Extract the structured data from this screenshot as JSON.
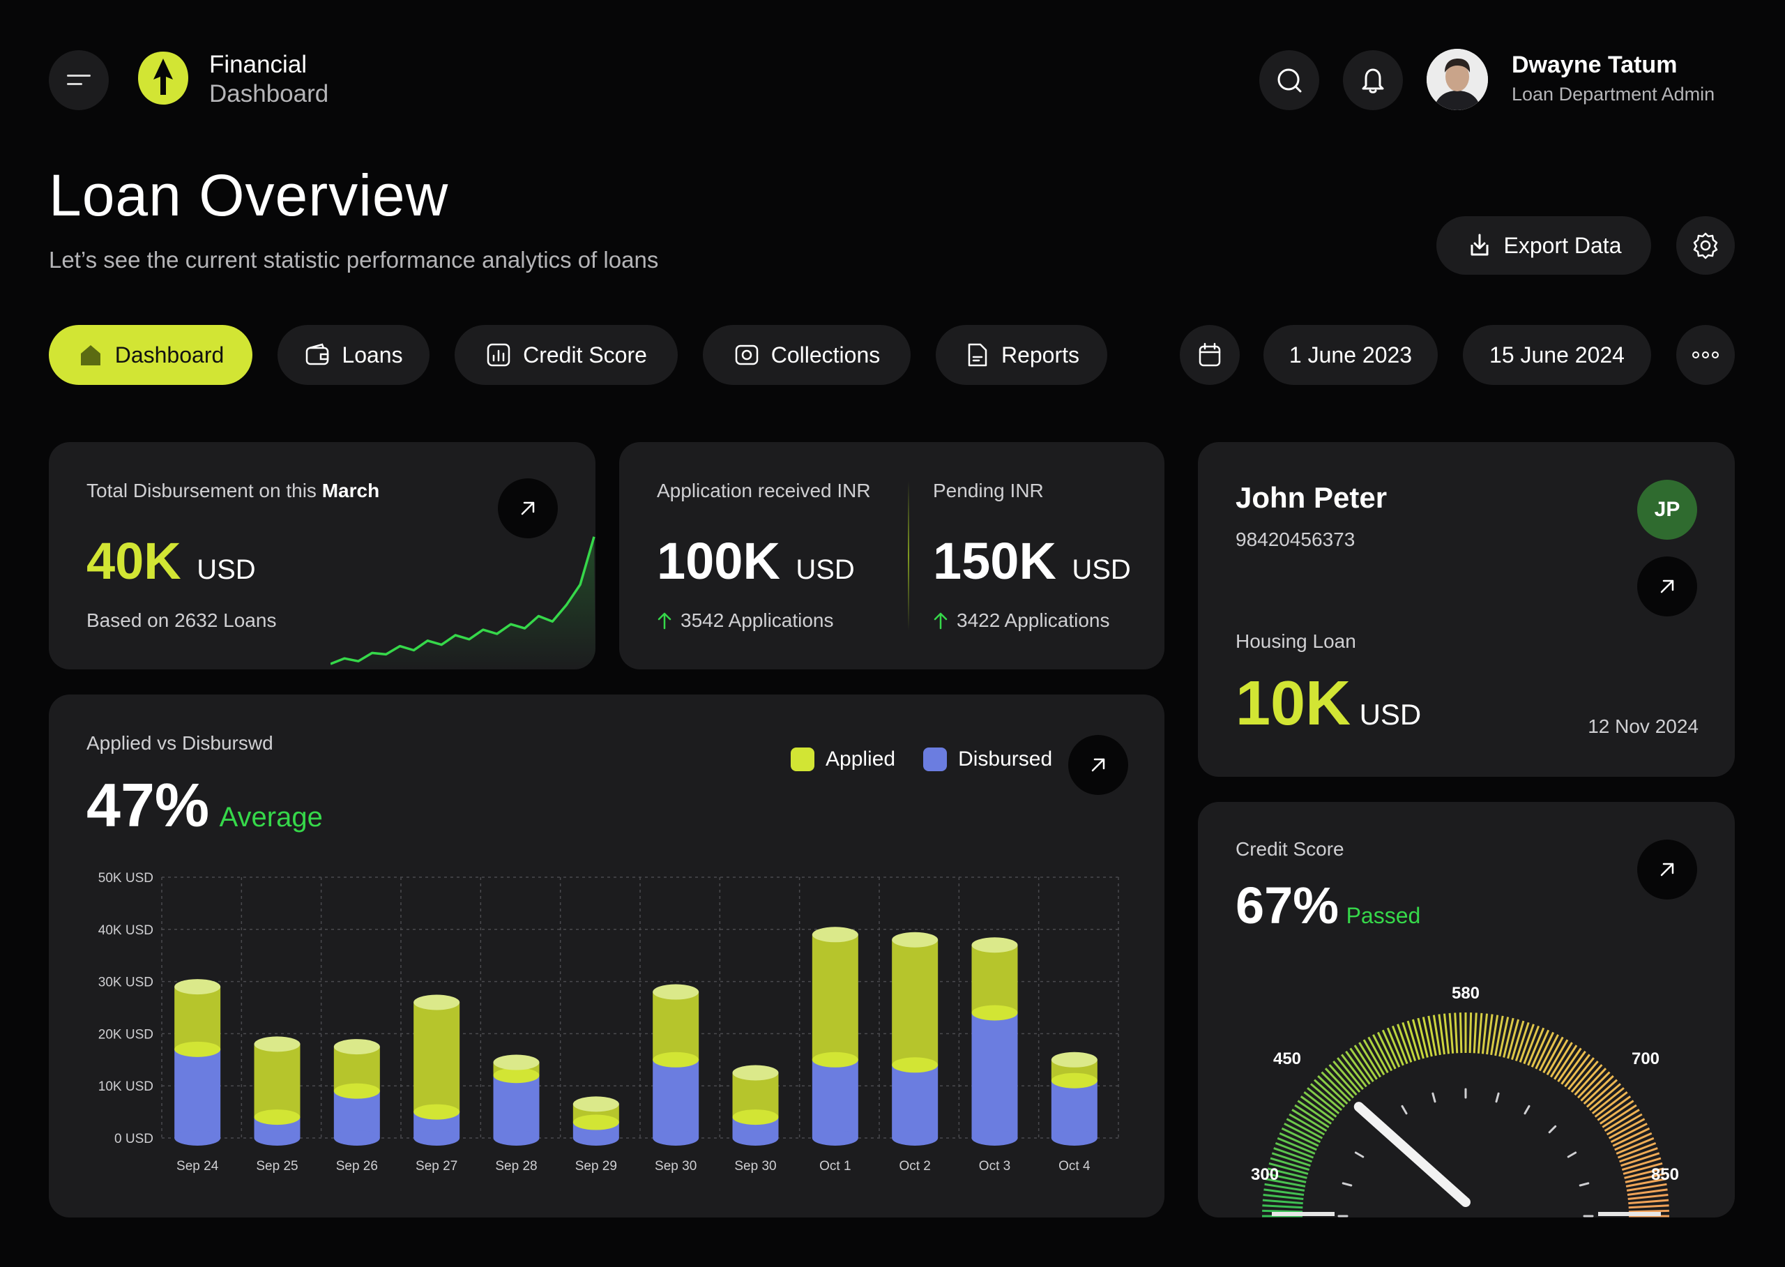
{
  "header": {
    "brand_line1": "Financial",
    "brand_line2": "Dashboard",
    "user_name": "Dwayne Tatum",
    "user_role": "Loan Department Admin"
  },
  "page": {
    "title": "Loan Overview",
    "subtitle": "Let’s see the current statistic performance analytics of loans",
    "export_label": "Export Data"
  },
  "nav": {
    "tabs": [
      {
        "label": "Dashboard",
        "icon": "home-icon",
        "active": true
      },
      {
        "label": "Loans",
        "icon": "wallet-icon"
      },
      {
        "label": "Credit Score",
        "icon": "chart-icon"
      },
      {
        "label": "Collections",
        "icon": "camera-icon"
      },
      {
        "label": "Reports",
        "icon": "document-icon"
      }
    ],
    "date_from": "1 June 2023",
    "date_to": "15 June 2024"
  },
  "disbursement": {
    "label_prefix": "Total Disbursement on this ",
    "label_month": "March",
    "value": "40K",
    "unit": "USD",
    "based_on": "Based on 2632 Loans"
  },
  "applications": {
    "received_label": "Application received INR",
    "received_value": "100K",
    "received_unit": "USD",
    "received_count": "3542 Applications",
    "pending_label": "Pending INR",
    "pending_value": "150K",
    "pending_unit": "USD",
    "pending_count": "3422 Applications"
  },
  "customer": {
    "name": "John Peter",
    "number": "98420456373",
    "initials": "JP",
    "loan_type": "Housing Loan",
    "amount": "10K",
    "unit": "USD",
    "date": "12 Nov 2024"
  },
  "applied_chart": {
    "title": "Applied vs Disburswd",
    "percent": "47%",
    "percent_label": "Average"
  },
  "credit": {
    "title": "Credit Score",
    "percent": "67%",
    "status": "Passed",
    "gauge_labels": [
      "300",
      "450",
      "580",
      "700",
      "850"
    ],
    "min": 300,
    "max": 850,
    "needle_value": 450
  },
  "colors": {
    "accent": "#d2e534",
    "applied": "#c4d42f",
    "disbursed": "#6b7de0",
    "positive": "#36d84a",
    "avatar_jp": "#2f6b2f"
  },
  "chart_data": {
    "type": "bar",
    "stacked": true,
    "categories": [
      "Sep 24",
      "Sep 25",
      "Sep 26",
      "Sep 27",
      "Sep 28",
      "Sep 29",
      "Sep 30",
      "Sep 30",
      "Oct 1",
      "Oct 2",
      "Oct 3",
      "Oct 4"
    ],
    "yticks": [
      "0 USD",
      "10K USD",
      "20K USD",
      "30K USD",
      "40K USD",
      "50K USD"
    ],
    "ylim": [
      0,
      50000
    ],
    "grid": true,
    "legend_position": "top-right",
    "series": [
      {
        "name": "Disbursed",
        "values": [
          17000,
          4000,
          9000,
          5000,
          12000,
          3000,
          15000,
          4000,
          15000,
          14000,
          24000,
          11000
        ]
      },
      {
        "name": "Applied",
        "values": [
          12000,
          14000,
          8500,
          21000,
          2500,
          3500,
          13000,
          8500,
          24000,
          24000,
          13000,
          4000
        ]
      }
    ]
  },
  "sparkline": {
    "values": [
      2,
      6,
      4,
      10,
      9,
      15,
      12,
      19,
      16,
      23,
      20,
      27,
      24,
      31,
      28,
      37,
      33,
      45,
      60,
      95
    ]
  }
}
